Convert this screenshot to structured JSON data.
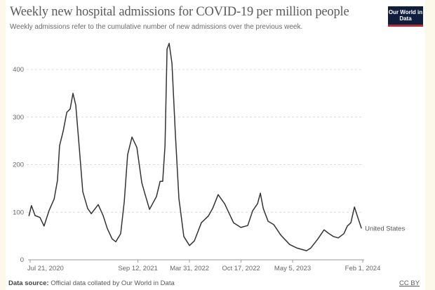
{
  "title": "Weekly new hospital admissions for COVID-19 per million people",
  "subtitle": "Weekly admissions refer to the cumulative number of new admissions over the previous week.",
  "logo_text": "Our World in Data",
  "footer": {
    "source_label": "Data source:",
    "source_text": "Official data collated by Our World in Data",
    "license": "CC BY"
  },
  "chart_data": {
    "type": "line",
    "title": "Weekly new hospital admissions for COVID-19 per million people",
    "ylim": [
      0,
      400
    ],
    "yticks": [
      0,
      100,
      200,
      300,
      400
    ],
    "xticks": [
      {
        "date": "2020-07-21",
        "label": "Jul 21, 2020"
      },
      {
        "date": "2021-09-12",
        "label": "Sep 12, 2021"
      },
      {
        "date": "2022-03-31",
        "label": "Mar 31, 2022"
      },
      {
        "date": "2022-10-17",
        "label": "Oct 17, 2022"
      },
      {
        "date": "2023-05-05",
        "label": "May 5, 2023"
      },
      {
        "date": "2024-02-01",
        "label": "Feb 1, 2024"
      }
    ],
    "grid": "horizontal dashed",
    "line_color": "#333333",
    "series": [
      {
        "name": "United States",
        "points": [
          [
            "2020-07-16",
            92
          ],
          [
            "2020-07-26",
            114
          ],
          [
            "2020-08-09",
            93
          ],
          [
            "2020-08-28",
            89
          ],
          [
            "2020-09-13",
            71
          ],
          [
            "2020-10-02",
            103
          ],
          [
            "2020-10-22",
            128
          ],
          [
            "2020-11-04",
            167
          ],
          [
            "2020-11-12",
            240
          ],
          [
            "2020-11-26",
            270
          ],
          [
            "2020-12-10",
            310
          ],
          [
            "2020-12-23",
            317
          ],
          [
            "2021-01-03",
            350
          ],
          [
            "2021-01-14",
            325
          ],
          [
            "2021-01-28",
            232
          ],
          [
            "2021-02-10",
            143
          ],
          [
            "2021-03-01",
            108
          ],
          [
            "2021-03-15",
            97
          ],
          [
            "2021-04-11",
            116
          ],
          [
            "2021-04-30",
            93
          ],
          [
            "2021-05-16",
            66
          ],
          [
            "2021-06-04",
            44
          ],
          [
            "2021-06-18",
            38
          ],
          [
            "2021-07-07",
            55
          ],
          [
            "2021-07-21",
            122
          ],
          [
            "2021-08-03",
            221
          ],
          [
            "2021-08-20",
            258
          ],
          [
            "2021-09-08",
            236
          ],
          [
            "2021-09-27",
            162
          ],
          [
            "2021-10-10",
            137
          ],
          [
            "2021-10-27",
            106
          ],
          [
            "2021-11-23",
            133
          ],
          [
            "2021-12-07",
            165
          ],
          [
            "2021-12-17",
            165
          ],
          [
            "2021-12-26",
            240
          ],
          [
            "2022-01-03",
            443
          ],
          [
            "2022-01-11",
            455
          ],
          [
            "2022-01-22",
            413
          ],
          [
            "2022-02-04",
            266
          ],
          [
            "2022-02-18",
            129
          ],
          [
            "2022-03-09",
            49
          ],
          [
            "2022-03-31",
            30
          ],
          [
            "2022-04-19",
            40
          ],
          [
            "2022-05-16",
            78
          ],
          [
            "2022-06-12",
            92
          ],
          [
            "2022-06-29",
            108
          ],
          [
            "2022-07-20",
            137
          ],
          [
            "2022-08-14",
            118
          ],
          [
            "2022-09-18",
            78
          ],
          [
            "2022-10-16",
            68
          ],
          [
            "2022-11-12",
            72
          ],
          [
            "2022-12-01",
            103
          ],
          [
            "2022-12-20",
            118
          ],
          [
            "2022-12-31",
            140
          ],
          [
            "2023-01-11",
            108
          ],
          [
            "2023-01-30",
            81
          ],
          [
            "2023-02-21",
            74
          ],
          [
            "2023-03-20",
            52
          ],
          [
            "2023-04-24",
            32
          ],
          [
            "2023-05-21",
            25
          ],
          [
            "2023-06-28",
            19
          ],
          [
            "2023-07-15",
            25
          ],
          [
            "2023-08-11",
            44
          ],
          [
            "2023-09-04",
            63
          ],
          [
            "2023-09-21",
            56
          ],
          [
            "2023-10-10",
            49
          ],
          [
            "2023-10-29",
            46
          ],
          [
            "2023-11-20",
            55
          ],
          [
            "2023-12-03",
            71
          ],
          [
            "2023-12-17",
            78
          ],
          [
            "2023-12-31",
            111
          ],
          [
            "2024-01-13",
            89
          ],
          [
            "2024-01-27",
            66
          ]
        ]
      }
    ]
  }
}
